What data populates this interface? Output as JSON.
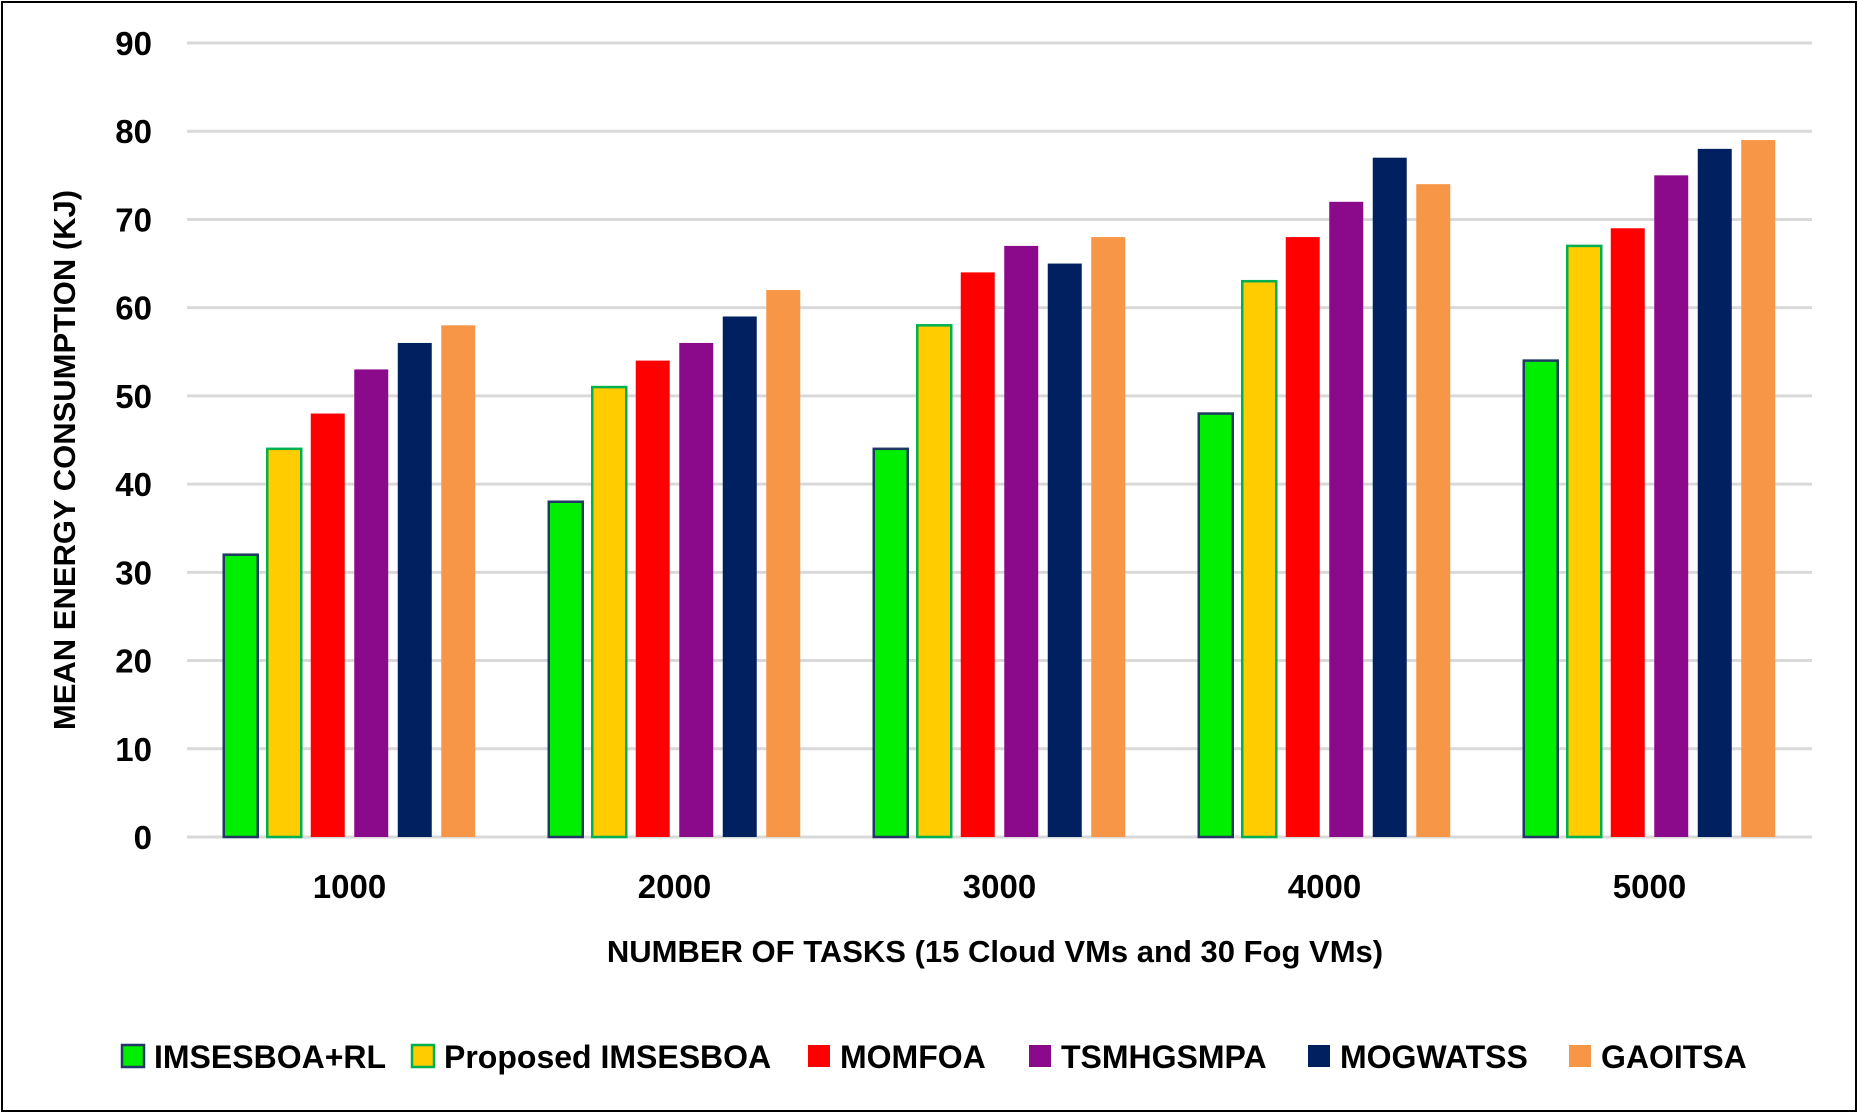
{
  "chart_data": {
    "type": "bar",
    "title": "",
    "xlabel": "NUMBER OF TASKS (15 Cloud VMs and 30 Fog VMs)",
    "ylabel": "MEAN ENERGY CONSUMPTION (KJ)",
    "ylim": [
      0,
      90
    ],
    "yticks": [
      "0",
      "10",
      "20",
      "30",
      "40",
      "50",
      "60",
      "70",
      "80",
      "90"
    ],
    "grid": true,
    "legend_position": "bottom",
    "categories": [
      "1000",
      "2000",
      "3000",
      "4000",
      "5000"
    ],
    "series": [
      {
        "name": "IMSESBOA+RL",
        "color": "#00EE00",
        "stroke": "#1F3864",
        "values": [
          32,
          38,
          44,
          48,
          54
        ]
      },
      {
        "name": "Proposed IMSESBOA",
        "color": "#FFCC00",
        "stroke": "#00B050",
        "values": [
          44,
          51,
          58,
          63,
          67
        ]
      },
      {
        "name": "MOMFOA",
        "color": "#FF0000",
        "stroke": "none",
        "values": [
          48,
          54,
          64,
          68,
          69
        ]
      },
      {
        "name": "TSMHGSMPA",
        "color": "#8B0A8B",
        "stroke": "none",
        "values": [
          53,
          56,
          67,
          72,
          75
        ]
      },
      {
        "name": "MOGWATSS",
        "color": "#002060",
        "stroke": "none",
        "values": [
          56,
          59,
          65,
          77,
          78
        ]
      },
      {
        "name": "GAOITSA",
        "color": "#F79646",
        "stroke": "none",
        "values": [
          58,
          62,
          68,
          74,
          79
        ]
      }
    ]
  }
}
